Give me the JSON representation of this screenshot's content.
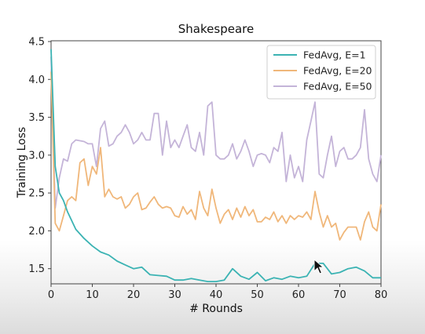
{
  "chart_data": {
    "type": "line",
    "title": "Shakespeare",
    "xlabel": "# Rounds",
    "ylabel": "Training Loss",
    "xlim": [
      0,
      80
    ],
    "ylim": [
      1.3,
      4.5
    ],
    "xticks": [
      0,
      10,
      20,
      30,
      40,
      50,
      60,
      70,
      80
    ],
    "yticks": [
      1.5,
      2.0,
      2.5,
      3.0,
      3.5,
      4.0,
      4.5
    ],
    "ytick_labels": [
      "1.5",
      "2.0",
      "2.5",
      "3.0",
      "3.5",
      "4.0",
      "4.5"
    ],
    "grid": false,
    "legend_position": "top-right",
    "series": [
      {
        "name": "FedAvg, E=1",
        "color": "#3bb3b3",
        "points": [
          [
            0,
            4.4
          ],
          [
            1,
            2.85
          ],
          [
            2,
            2.5
          ],
          [
            3,
            2.4
          ],
          [
            4,
            2.25
          ],
          [
            6,
            2.02
          ],
          [
            8,
            1.9
          ],
          [
            10,
            1.8
          ],
          [
            12,
            1.72
          ],
          [
            14,
            1.68
          ],
          [
            16,
            1.6
          ],
          [
            18,
            1.55
          ],
          [
            20,
            1.5
          ],
          [
            22,
            1.52
          ],
          [
            24,
            1.42
          ],
          [
            26,
            1.41
          ],
          [
            28,
            1.4
          ],
          [
            30,
            1.35
          ],
          [
            32,
            1.35
          ],
          [
            34,
            1.37
          ],
          [
            36,
            1.35
          ],
          [
            38,
            1.33
          ],
          [
            40,
            1.33
          ],
          [
            42,
            1.35
          ],
          [
            44,
            1.5
          ],
          [
            46,
            1.4
          ],
          [
            48,
            1.36
          ],
          [
            50,
            1.45
          ],
          [
            52,
            1.34
          ],
          [
            54,
            1.38
          ],
          [
            56,
            1.36
          ],
          [
            58,
            1.4
          ],
          [
            60,
            1.38
          ],
          [
            62,
            1.4
          ],
          [
            64,
            1.57
          ],
          [
            66,
            1.57
          ],
          [
            68,
            1.43
          ],
          [
            70,
            1.45
          ],
          [
            72,
            1.5
          ],
          [
            74,
            1.52
          ],
          [
            76,
            1.47
          ],
          [
            78,
            1.38
          ],
          [
            80,
            1.38
          ]
        ]
      },
      {
        "name": "FedAvg, E=20",
        "color": "#f0b77a",
        "points": [
          [
            0,
            4.1
          ],
          [
            1,
            2.1
          ],
          [
            2,
            2.0
          ],
          [
            3,
            2.2
          ],
          [
            4,
            2.4
          ],
          [
            5,
            2.45
          ],
          [
            6,
            2.4
          ],
          [
            7,
            2.9
          ],
          [
            8,
            2.95
          ],
          [
            9,
            2.6
          ],
          [
            10,
            2.85
          ],
          [
            11,
            2.75
          ],
          [
            12,
            3.1
          ],
          [
            13,
            2.45
          ],
          [
            14,
            2.55
          ],
          [
            15,
            2.45
          ],
          [
            16,
            2.42
          ],
          [
            17,
            2.45
          ],
          [
            18,
            2.3
          ],
          [
            19,
            2.35
          ],
          [
            20,
            2.45
          ],
          [
            21,
            2.5
          ],
          [
            22,
            2.28
          ],
          [
            23,
            2.3
          ],
          [
            24,
            2.38
          ],
          [
            25,
            2.45
          ],
          [
            26,
            2.35
          ],
          [
            27,
            2.3
          ],
          [
            28,
            2.32
          ],
          [
            29,
            2.3
          ],
          [
            30,
            2.2
          ],
          [
            31,
            2.18
          ],
          [
            32,
            2.32
          ],
          [
            33,
            2.22
          ],
          [
            34,
            2.28
          ],
          [
            35,
            2.15
          ],
          [
            36,
            2.52
          ],
          [
            37,
            2.3
          ],
          [
            38,
            2.2
          ],
          [
            39,
            2.55
          ],
          [
            40,
            2.3
          ],
          [
            41,
            2.1
          ],
          [
            42,
            2.22
          ],
          [
            43,
            2.28
          ],
          [
            44,
            2.15
          ],
          [
            45,
            2.3
          ],
          [
            46,
            2.18
          ],
          [
            47,
            2.32
          ],
          [
            48,
            2.2
          ],
          [
            49,
            2.28
          ],
          [
            50,
            2.12
          ],
          [
            51,
            2.12
          ],
          [
            52,
            2.18
          ],
          [
            53,
            2.15
          ],
          [
            54,
            2.25
          ],
          [
            55,
            2.12
          ],
          [
            56,
            2.2
          ],
          [
            57,
            2.1
          ],
          [
            58,
            2.2
          ],
          [
            59,
            2.15
          ],
          [
            60,
            2.2
          ],
          [
            61,
            2.18
          ],
          [
            62,
            2.25
          ],
          [
            63,
            2.15
          ],
          [
            64,
            2.52
          ],
          [
            65,
            2.25
          ],
          [
            66,
            2.05
          ],
          [
            67,
            2.2
          ],
          [
            68,
            2.05
          ],
          [
            69,
            2.1
          ],
          [
            70,
            1.88
          ],
          [
            71,
            1.98
          ],
          [
            72,
            2.05
          ],
          [
            73,
            2.05
          ],
          [
            74,
            2.05
          ],
          [
            75,
            1.88
          ],
          [
            76,
            2.12
          ],
          [
            77,
            2.25
          ],
          [
            78,
            2.05
          ],
          [
            79,
            2.0
          ],
          [
            80,
            2.35
          ]
        ]
      },
      {
        "name": "FedAvg, E=50",
        "color": "#c4b4d8",
        "points": [
          [
            0,
            4.3
          ],
          [
            1,
            2.3
          ],
          [
            2,
            2.7
          ],
          [
            3,
            2.95
          ],
          [
            4,
            2.92
          ],
          [
            5,
            3.15
          ],
          [
            6,
            3.2
          ],
          [
            8,
            3.18
          ],
          [
            9,
            3.15
          ],
          [
            10,
            3.15
          ],
          [
            11,
            2.85
          ],
          [
            12,
            3.35
          ],
          [
            13,
            3.45
          ],
          [
            14,
            3.12
          ],
          [
            15,
            3.15
          ],
          [
            16,
            3.25
          ],
          [
            17,
            3.3
          ],
          [
            18,
            3.4
          ],
          [
            19,
            3.3
          ],
          [
            20,
            3.15
          ],
          [
            21,
            3.2
          ],
          [
            22,
            3.3
          ],
          [
            23,
            3.2
          ],
          [
            24,
            3.2
          ],
          [
            25,
            3.55
          ],
          [
            26,
            3.55
          ],
          [
            27,
            3.0
          ],
          [
            28,
            3.45
          ],
          [
            29,
            3.1
          ],
          [
            30,
            3.2
          ],
          [
            31,
            3.1
          ],
          [
            32,
            3.25
          ],
          [
            33,
            3.4
          ],
          [
            34,
            3.1
          ],
          [
            35,
            3.05
          ],
          [
            36,
            3.3
          ],
          [
            37,
            3.0
          ],
          [
            38,
            3.65
          ],
          [
            39,
            3.7
          ],
          [
            40,
            3.0
          ],
          [
            41,
            2.95
          ],
          [
            42,
            2.95
          ],
          [
            43,
            3.0
          ],
          [
            44,
            3.15
          ],
          [
            45,
            2.95
          ],
          [
            46,
            3.05
          ],
          [
            47,
            3.2
          ],
          [
            48,
            3.05
          ],
          [
            49,
            2.85
          ],
          [
            50,
            3.0
          ],
          [
            51,
            3.02
          ],
          [
            52,
            3.0
          ],
          [
            53,
            2.9
          ],
          [
            54,
            3.1
          ],
          [
            55,
            3.05
          ],
          [
            56,
            3.3
          ],
          [
            57,
            2.65
          ],
          [
            58,
            3.0
          ],
          [
            59,
            2.7
          ],
          [
            60,
            2.85
          ],
          [
            61,
            2.65
          ],
          [
            62,
            3.2
          ],
          [
            63,
            3.45
          ],
          [
            64,
            3.7
          ],
          [
            65,
            2.75
          ],
          [
            66,
            2.7
          ],
          [
            67,
            3.0
          ],
          [
            68,
            3.25
          ],
          [
            69,
            2.85
          ],
          [
            70,
            3.05
          ],
          [
            71,
            3.1
          ],
          [
            72,
            2.95
          ],
          [
            73,
            2.95
          ],
          [
            74,
            3.0
          ],
          [
            75,
            3.1
          ],
          [
            76,
            3.6
          ],
          [
            77,
            2.95
          ],
          [
            78,
            2.75
          ],
          [
            79,
            2.65
          ],
          [
            80,
            3.0
          ]
        ]
      }
    ]
  }
}
